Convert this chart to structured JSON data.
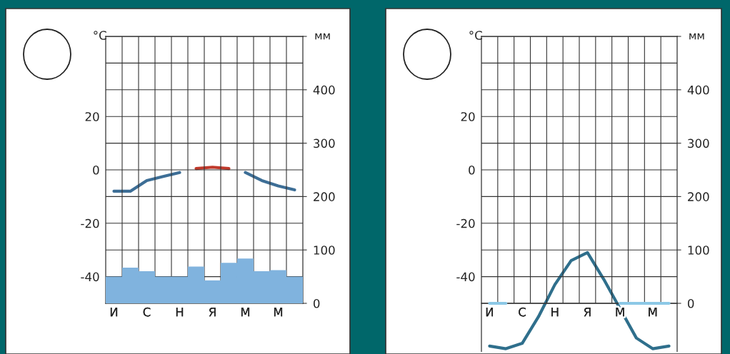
{
  "chart_data": [
    {
      "type": "bar",
      "ylabel": "°C",
      "y2label": "мм",
      "categories": [
        "И",
        null,
        "С",
        null,
        "Н",
        null,
        "Я",
        null,
        "М",
        null,
        "М",
        null
      ],
      "ylim": [
        -50,
        50
      ],
      "yticks": [
        {
          "value": -50,
          "label": null
        },
        -40,
        {
          "value": -30,
          "label": null
        },
        -20,
        {
          "value": -10,
          "label": null
        },
        0,
        {
          "value": 10,
          "label": null
        },
        20,
        {
          "value": 30,
          "label": null
        },
        {
          "value": 40,
          "label": null
        },
        {
          "value": 50,
          "label": null
        }
      ],
      "y2lim": [
        0,
        500
      ],
      "y2ticks": [
        0,
        100,
        200,
        300,
        400,
        {
          "value": 500,
          "label": null
        }
      ],
      "grid": true,
      "series": [
        {
          "axis": "y2",
          "color": "#80b3de",
          "values": [
            50,
            67,
            60,
            50,
            50,
            69,
            43,
            76,
            84,
            60,
            62,
            50
          ]
        },
        {
          "type": "line",
          "color": "#3d6e96",
          "values": [
            -8,
            -8,
            -4,
            -2.5,
            -1,
            null,
            null,
            null,
            -1,
            -4,
            -6,
            -7.5
          ]
        },
        {
          "type": "line",
          "color": "#c0392b",
          "values": [
            null,
            null,
            null,
            null,
            null,
            0.5,
            1,
            0.5,
            null,
            null,
            null,
            null
          ]
        }
      ]
    },
    {
      "type": "line",
      "ylabel": "°C",
      "y2label": "мм",
      "categories": [
        "И",
        null,
        "С",
        null,
        "Н",
        null,
        "Я",
        null,
        "М",
        null,
        "М",
        null
      ],
      "ylim": [
        -68,
        50
      ],
      "yticks": [
        {
          "value": -50,
          "label": null
        },
        -40,
        {
          "value": -30,
          "label": null
        },
        -20,
        {
          "value": -10,
          "label": null
        },
        0,
        {
          "value": 10,
          "label": null
        },
        20,
        {
          "value": 30,
          "label": null
        },
        {
          "value": 40,
          "label": null
        },
        {
          "value": 50,
          "label": null
        }
      ],
      "y2lim": [
        -90,
        500
      ],
      "y2ticks": [
        0,
        100,
        200,
        300,
        400,
        {
          "value": 500,
          "label": null
        }
      ],
      "grid": true,
      "series": [
        {
          "axis": "y2",
          "color": "#8cc8e6",
          "values": [
            0,
            0,
            null,
            null,
            null,
            null,
            null,
            null,
            0,
            0,
            0,
            0
          ]
        },
        {
          "color": "#2f6f8c",
          "values": [
            -66,
            -67,
            -65,
            -55,
            -43,
            -34,
            -31,
            -41,
            -52,
            -63,
            -67,
            -66
          ]
        }
      ]
    }
  ]
}
